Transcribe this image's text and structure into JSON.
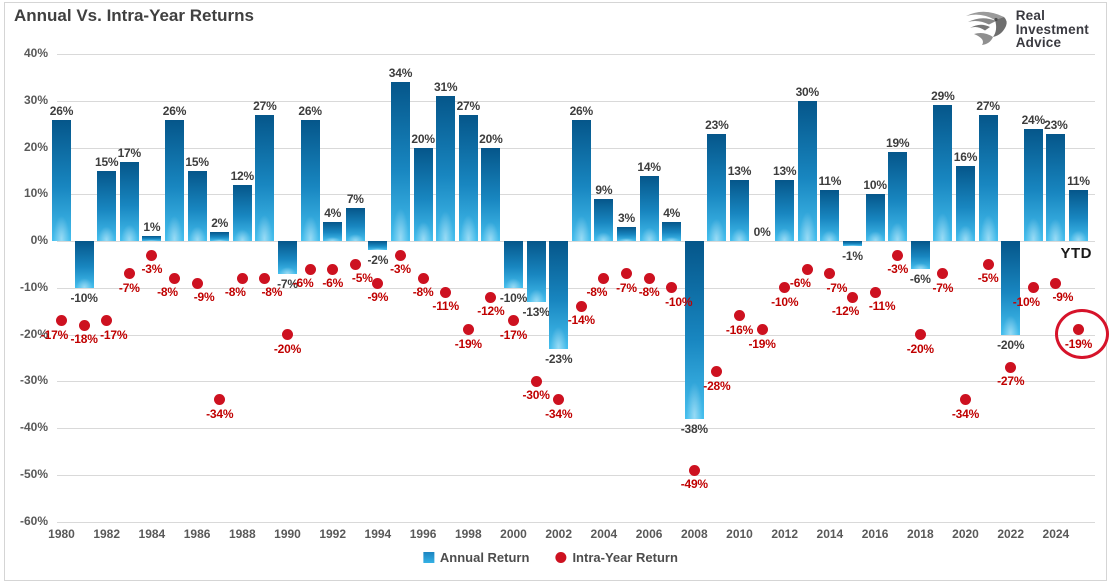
{
  "title": "Annual Vs. Intra-Year Returns",
  "logo": {
    "icon": "eagle-icon",
    "lines": [
      "Real",
      "Investment",
      "Advice"
    ]
  },
  "legend": {
    "items": [
      {
        "label": "Annual Return",
        "marker": "square",
        "color": "#1b96d2"
      },
      {
        "label": "Intra-Year Return",
        "marker": "dot",
        "color": "#cd1120"
      }
    ]
  },
  "colors": {
    "bar_top": "#05568a",
    "bar_bottom": "#45bfee",
    "dot": "#cd1120",
    "dot_label": "#c00000",
    "bar_label": "#3d3d3d",
    "axis_label": "#595959",
    "grid": "#d9d9d9",
    "title": "#404040",
    "annotation_circle": "#d6132a"
  },
  "chart_data": {
    "type": "bar",
    "combo": "bar + scatter",
    "title": "Annual Vs. Intra-Year Returns",
    "x": [
      1980,
      1981,
      1982,
      1983,
      1984,
      1985,
      1986,
      1987,
      1988,
      1989,
      1990,
      1991,
      1992,
      1993,
      1994,
      1995,
      1996,
      1997,
      1998,
      1999,
      2000,
      2001,
      2002,
      2003,
      2004,
      2005,
      2006,
      2007,
      2008,
      2009,
      2010,
      2011,
      2012,
      2013,
      2014,
      2015,
      2016,
      2017,
      2018,
      2019,
      2020,
      2021,
      2022,
      2023,
      2024,
      2025
    ],
    "x_tick_labels": [
      "1980",
      "1982",
      "1984",
      "1986",
      "1988",
      "1990",
      "1992",
      "1994",
      "1996",
      "1998",
      "2000",
      "2002",
      "2004",
      "2006",
      "2008",
      "2010",
      "2012",
      "2014",
      "2016",
      "2018",
      "2020",
      "2022",
      "2024"
    ],
    "series": [
      {
        "name": "Annual Return",
        "render": "bar",
        "values": [
          26,
          -10,
          15,
          17,
          1,
          26,
          15,
          2,
          12,
          27,
          -7,
          26,
          4,
          7,
          -2,
          34,
          20,
          31,
          27,
          20,
          -10,
          -13,
          -23,
          26,
          9,
          3,
          14,
          4,
          -38,
          23,
          13,
          0,
          13,
          30,
          11,
          -1,
          10,
          19,
          -6,
          29,
          16,
          27,
          -20,
          24,
          23,
          11
        ]
      },
      {
        "name": "Intra-Year Return",
        "render": "scatter",
        "values": [
          -17,
          -18,
          -17,
          -7,
          -3,
          -8,
          -9,
          -34,
          -8,
          -8,
          -20,
          -6,
          -6,
          -5,
          -9,
          -3,
          -8,
          -11,
          -19,
          -12,
          -17,
          -30,
          -34,
          -14,
          -8,
          -7,
          -8,
          -10,
          -49,
          -28,
          -16,
          -19,
          -10,
          -6,
          -7,
          -12,
          -11,
          -3,
          -20,
          -7,
          -34,
          -5,
          -27,
          -10,
          -9,
          -19
        ]
      }
    ],
    "ylim": [
      -60,
      40
    ],
    "y_ticks": [
      40,
      30,
      20,
      10,
      0,
      -10,
      -20,
      -30,
      -40,
      -50,
      -60
    ],
    "y_tick_labels": [
      "40%",
      "30%",
      "20%",
      "10%",
      "0%",
      "-10%",
      "-20%",
      "-30%",
      "-40%",
      "-50%",
      "-60%"
    ],
    "grid": "horizontal",
    "legend_position": "bottom",
    "annotations": {
      "ytd_label": "YTD",
      "circled_point": {
        "year": 2025,
        "series": "Intra-Year Return",
        "value": -19
      }
    }
  }
}
